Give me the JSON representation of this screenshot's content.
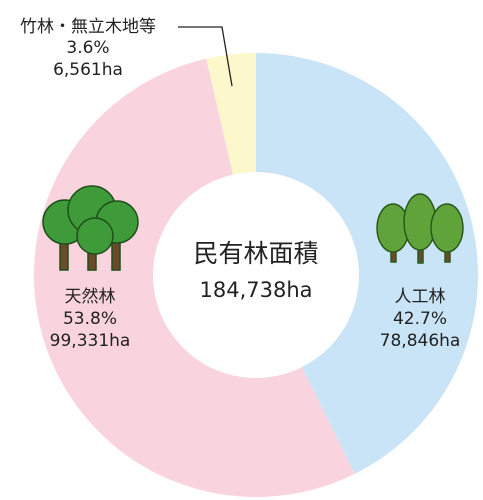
{
  "chart_data": {
    "type": "donut",
    "title": "民有林面積",
    "total": 184738,
    "total_label": "184,738ha",
    "categories": [
      "人工林",
      "天然林",
      "竹林・無立木地等"
    ],
    "values": [
      42.7,
      53.8,
      3.6
    ],
    "value_labels": [
      "42.7%",
      "53.8%",
      "3.6%"
    ],
    "areas": [
      78846,
      99331,
      6561
    ],
    "area_labels": [
      "78,846ha",
      "99,331ha",
      "6,561ha"
    ],
    "colors": [
      "#c8e4f6",
      "#f9d3de",
      "#fdf8cc"
    ]
  }
}
